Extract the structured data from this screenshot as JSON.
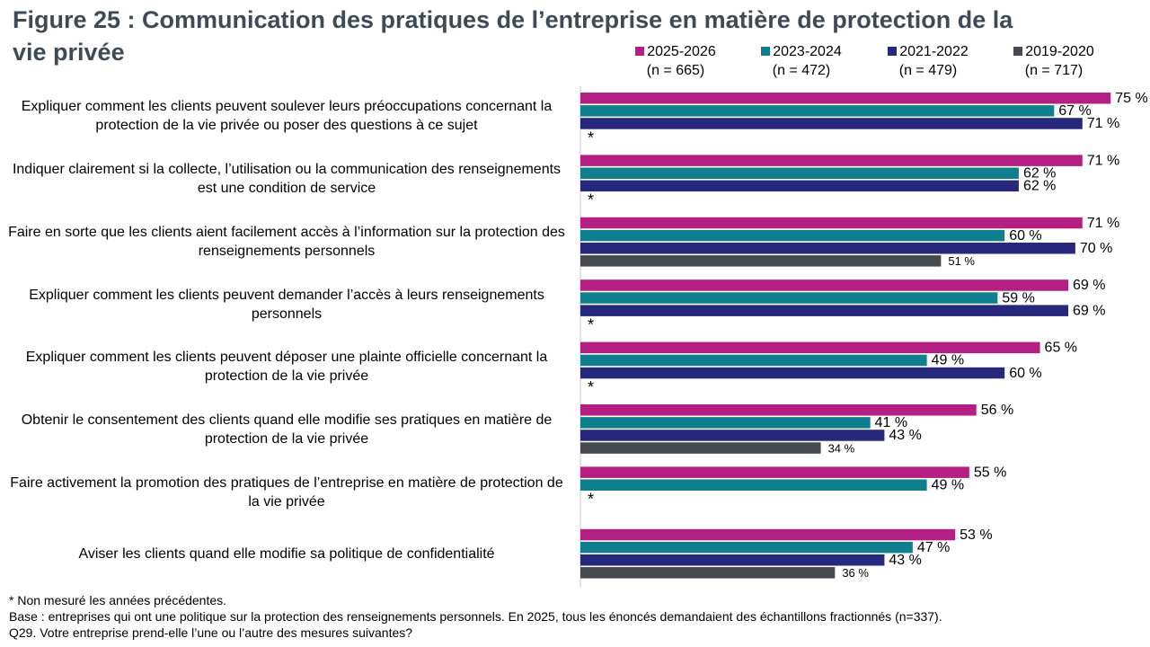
{
  "title": "Figure 25 : Communication des pratiques de l’entreprise en matière de protection de la vie privée",
  "legend": [
    {
      "label": "2025-2026",
      "n": "(n = 665)",
      "color": "#b41f84"
    },
    {
      "label": "2023-2024",
      "n": "(n = 472)",
      "color": "#0f7f8d"
    },
    {
      "label": "2021-2022",
      "n": "(n = 479)",
      "color": "#26297b"
    },
    {
      "label": "2019-2020",
      "n": "(n = 717)",
      "color": "#46494d"
    }
  ],
  "not_measured_marker": "*",
  "chart_data": {
    "type": "bar",
    "orientation": "horizontal",
    "categories": [
      "Expliquer comment les clients peuvent soulever leurs préoccupations concernant la protection de la vie privée ou poser des questions à ce sujet",
      "Indiquer clairement si la collecte, l’utilisation ou la communication des renseignements est une condition de service",
      "Faire en sorte que les clients aient facilement accès à l’information sur la protection des renseignements personnels",
      "Expliquer comment les clients peuvent demander l’accès à leurs renseignements personnels",
      "Expliquer comment les clients peuvent déposer une plainte officielle concernant la protection de la vie privée",
      "Obtenir le consentement des clients quand elle modifie ses pratiques en matière de protection de la vie privée",
      "Faire activement la promotion des pratiques de l’entreprise en matière de protection de la vie privée",
      "Aviser les clients quand elle modifie sa politique de confidentialité"
    ],
    "series": [
      {
        "name": "2025-2026",
        "values": [
          75,
          71,
          71,
          69,
          65,
          56,
          55,
          53
        ]
      },
      {
        "name": "2023-2024",
        "values": [
          67,
          62,
          60,
          59,
          49,
          41,
          49,
          47
        ]
      },
      {
        "name": "2021-2022",
        "values": [
          71,
          62,
          70,
          69,
          60,
          43,
          null,
          43
        ]
      },
      {
        "name": "2019-2020",
        "values": [
          null,
          null,
          51,
          null,
          null,
          34,
          null,
          36
        ]
      }
    ],
    "value_suffix": " %",
    "xlim": [
      0,
      100
    ]
  },
  "footnotes": [
    "* Non mesuré les années précédentes.",
    "Base : entreprises qui ont une politique sur la protection des renseignements personnels. En 2025, tous les énoncés demandaient des échantillons fractionnés (n=337).",
    "Q29. Votre entreprise prend-elle l’une ou l’autre des mesures suivantes?"
  ]
}
